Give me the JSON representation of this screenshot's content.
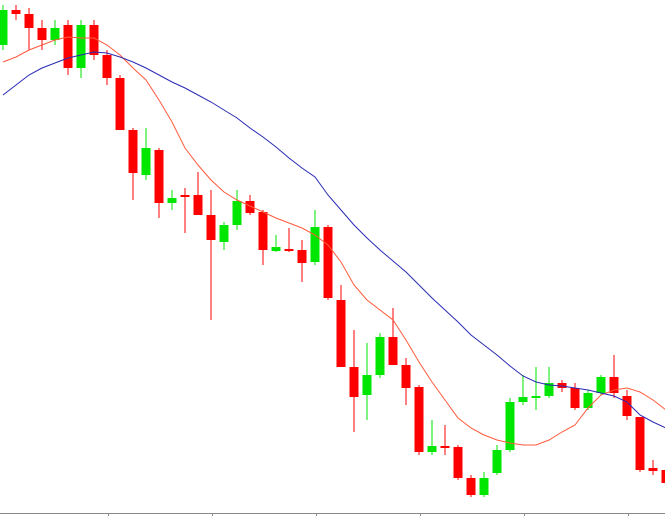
{
  "chart_data": {
    "type": "candlestick",
    "up_color": "#00e600",
    "down_color": "#ff0000",
    "ylim": [
      0,
      516
    ],
    "categories": [
      null,
      null,
      null,
      null,
      null,
      null,
      null,
      null,
      null,
      null,
      null,
      null,
      null,
      null,
      null,
      null,
      null,
      null,
      null,
      null,
      null,
      null,
      null,
      null,
      null,
      null,
      null,
      null,
      null,
      null,
      null,
      null,
      null,
      null,
      null,
      null,
      null,
      null,
      null,
      null,
      null,
      null,
      null,
      null,
      null,
      null,
      null,
      null,
      null,
      null,
      null,
      null
    ],
    "open": [
      471,
      506,
      502,
      488,
      476,
      491,
      448,
      491,
      461,
      438,
      386,
      341,
      366,
      313,
      321,
      321,
      301,
      274,
      291,
      315,
      304,
      265,
      267,
      266,
      254,
      289,
      216,
      149,
      121,
      141,
      179,
      151,
      129,
      64,
      70,
      69,
      38,
      21,
      43,
      66,
      114,
      118,
      120,
      133,
      128,
      108,
      123,
      139,
      120,
      99,
      48,
      46
    ],
    "high": [
      511,
      511,
      508,
      496,
      496,
      496,
      496,
      496,
      466,
      441,
      388,
      388,
      368,
      326,
      328,
      344,
      326,
      294,
      326,
      321,
      306,
      281,
      288,
      276,
      306,
      291,
      231,
      186,
      173,
      183,
      208,
      158,
      131,
      96,
      91,
      71,
      41,
      44,
      71,
      118,
      141,
      149,
      149,
      136,
      133,
      126,
      141,
      161,
      126,
      99,
      56,
      51
    ],
    "low": [
      466,
      496,
      466,
      466,
      471,
      441,
      438,
      456,
      431,
      386,
      316,
      336,
      298,
      306,
      283,
      301,
      196,
      266,
      286,
      301,
      251,
      264,
      264,
      234,
      251,
      216,
      149,
      84,
      96,
      138,
      151,
      111,
      61,
      61,
      61,
      36,
      19,
      19,
      41,
      64,
      111,
      106,
      118,
      124,
      106,
      106,
      121,
      118,
      96,
      44,
      41,
      31
    ],
    "close": [
      506,
      502,
      488,
      476,
      488,
      448,
      491,
      461,
      438,
      386,
      343,
      368,
      313,
      318,
      319,
      301,
      276,
      291,
      315,
      303,
      266,
      269,
      265,
      253,
      289,
      218,
      149,
      119,
      141,
      179,
      151,
      128,
      64,
      70,
      68,
      38,
      21,
      38,
      66,
      114,
      119,
      120,
      133,
      128,
      108,
      123,
      139,
      123,
      100,
      46,
      45,
      33
    ],
    "series": [
      {
        "color": "#ff5a3c",
        "values": [
          454,
          459,
          466,
          471,
          476,
          479,
          478,
          478,
          471,
          461,
          448,
          436,
          416,
          394,
          368,
          351,
          336,
          324,
          316,
          310,
          304,
          298,
          293,
          288,
          281,
          271,
          254,
          231,
          216,
          206,
          196,
          176,
          154,
          134,
          116,
          98,
          88,
          81,
          76,
          73,
          71,
          71,
          76,
          84,
          91,
          108,
          121,
          126,
          128,
          124,
          116,
          106
        ]
      },
      {
        "color": "#2a2ab4",
        "values": [
          421,
          431,
          441,
          448,
          453,
          458,
          461,
          464,
          463,
          459,
          454,
          448,
          441,
          434,
          428,
          421,
          414,
          406,
          398,
          388,
          379,
          369,
          358,
          348,
          339,
          321,
          306,
          291,
          278,
          266,
          255,
          244,
          231,
          218,
          206,
          194,
          181,
          171,
          161,
          150,
          140,
          134,
          131,
          130,
          128,
          126,
          123,
          120,
          114,
          101,
          94,
          88
        ]
      }
    ]
  }
}
